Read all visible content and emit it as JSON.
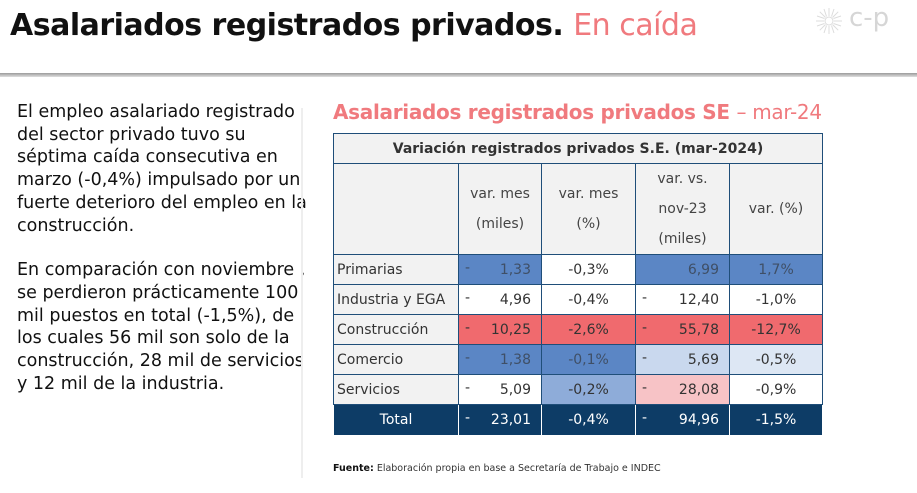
{
  "header": {
    "title_main": "Asalariados registrados privados.",
    "title_accent": "En caída",
    "logo_text": "c-p",
    "accent_color": "#f07a7e"
  },
  "body": {
    "paragraphs": [
      "El empleo asalariado registrado del sector privado tuvo su séptima caída consecutiva en marzo (-0,4%) impulsado por un fuerte deterioro del empleo en la construcción.",
      "En comparación con noviembre , se perdieron prácticamente 100 mil puestos en total (-1,5%), de los cuales 56 mil son solo de la construcción, 28 mil de servicios y 12 mil de la industria."
    ]
  },
  "table_section": {
    "title_bold": "Asalariados registrados privados SE",
    "title_light": "– mar-24",
    "caption": "Variación registrados privados S.E. (mar-2024)",
    "columns": [
      "",
      "var. mes (miles)",
      "var. mes (%)",
      "var. vs. nov-23 (miles)",
      "var. (%)"
    ],
    "column_lines": [
      [],
      [
        "var. mes",
        "(miles)"
      ],
      [
        "var. mes",
        "(%)"
      ],
      [
        "var. vs.",
        "nov-23",
        "(miles)"
      ],
      [
        "var. (%)"
      ]
    ],
    "rows": [
      {
        "label": "Primarias",
        "dash1": "-",
        "mes_miles": "1,33",
        "mes_pct": "-0,3%",
        "dash2": "",
        "nov_miles": "6,99",
        "nov_pct": "1,7%"
      },
      {
        "label": "Industria y EGA",
        "dash1": "-",
        "mes_miles": "4,96",
        "mes_pct": "-0,4%",
        "dash2": "-",
        "nov_miles": "12,40",
        "nov_pct": "-1,0%"
      },
      {
        "label": "Construcción",
        "dash1": "-",
        "mes_miles": "10,25",
        "mes_pct": "-2,6%",
        "dash2": "-",
        "nov_miles": "55,78",
        "nov_pct": "-12,7%"
      },
      {
        "label": "Comercio",
        "dash1": "-",
        "mes_miles": "1,38",
        "mes_pct": "-0,1%",
        "dash2": "-",
        "nov_miles": "5,69",
        "nov_pct": "-0,5%"
      },
      {
        "label": "Servicios",
        "dash1": "-",
        "mes_miles": "5,09",
        "mes_pct": "-0,2%",
        "dash2": "-",
        "nov_miles": "28,08",
        "nov_pct": "-0,9%"
      }
    ],
    "total": {
      "label": "Total",
      "dash1": "-",
      "mes_miles": "23,01",
      "mes_pct": "-0,4%",
      "dash2": "-",
      "nov_miles": "94,96",
      "nov_pct": "-1,5%"
    },
    "colors": {
      "blue": "#5b86c5",
      "light_blue": "#8eacd9",
      "pale_blue": "#c9d8ee",
      "red": "#f06a6e",
      "pink": "#f7c3c6",
      "navy": "#0d3c66"
    }
  },
  "source": {
    "label": "Fuente:",
    "text": "Elaboración propia en base a Secretaría de Trabajo e INDEC"
  }
}
